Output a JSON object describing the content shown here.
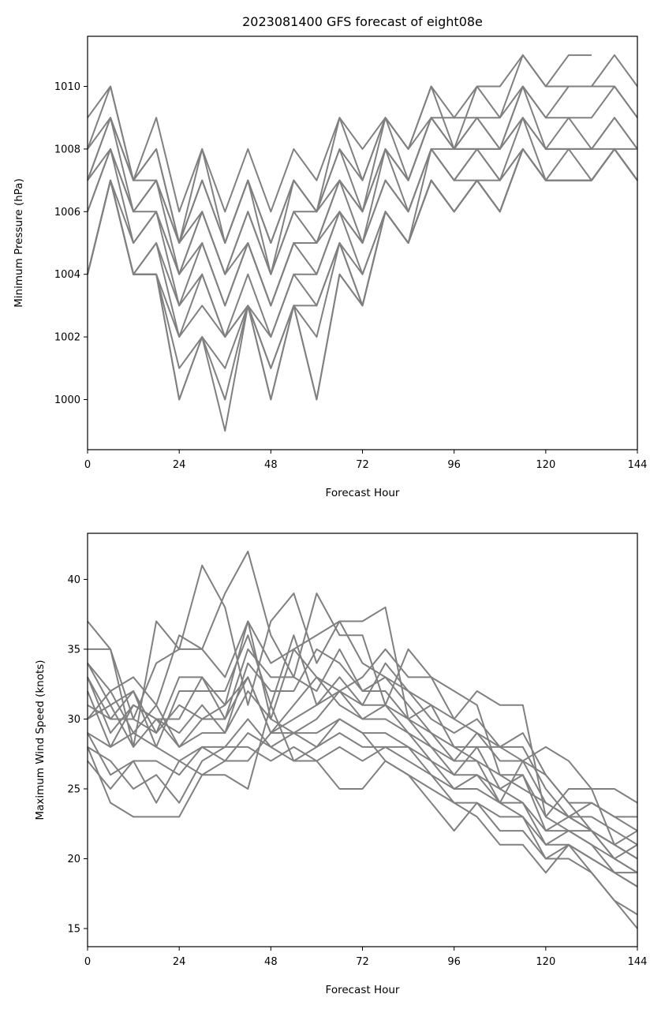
{
  "title": "2023081400 GFS forecast of eight08e",
  "line_color": "#808080",
  "chart_data": [
    {
      "type": "line",
      "title": "2023081400 GFS forecast of eight08e",
      "xlabel": "Forecast Hour",
      "ylabel": "Minimum Pressure (hPa)",
      "xlim": [
        0,
        144
      ],
      "ylim": [
        998.4,
        1011.6
      ],
      "xticks": [
        0,
        24,
        48,
        72,
        96,
        120,
        144
      ],
      "yticks": [
        1000,
        1002,
        1004,
        1006,
        1008,
        1010
      ],
      "x": [
        0,
        6,
        12,
        18,
        24,
        30,
        36,
        42,
        48,
        54,
        60,
        66,
        72,
        78,
        84,
        90,
        96,
        102,
        108,
        114,
        120,
        126,
        132,
        138,
        144
      ],
      "series": [
        {
          "values": [
            1009,
            1010,
            1007,
            1009,
            1006,
            1008,
            1006,
            1008,
            1006,
            1008,
            1007,
            1009,
            1008,
            1009,
            1008,
            1010,
            1009,
            1010,
            1010,
            1011,
            1010,
            1011,
            1011,
            null,
            null
          ]
        },
        {
          "values": [
            1008,
            1010,
            1007,
            1008,
            1005,
            1008,
            1005,
            1007,
            1005,
            1007,
            1006,
            1009,
            1007,
            1009,
            1008,
            1010,
            1008,
            1010,
            1009,
            1011,
            1010,
            1010,
            1010,
            1011,
            1010
          ]
        },
        {
          "values": [
            1008,
            1009,
            1007,
            1008,
            1005,
            1007,
            1005,
            1007,
            1005,
            1007,
            1006,
            1008,
            1007,
            1009,
            1008,
            1009,
            1009,
            1009,
            1009,
            1010,
            1009,
            1010,
            1010,
            1010,
            1009
          ]
        },
        {
          "values": [
            1007,
            1009,
            1007,
            1007,
            1005,
            1007,
            1005,
            1007,
            1004,
            1007,
            1006,
            1008,
            1006,
            1009,
            1007,
            1009,
            1008,
            1009,
            1008,
            1010,
            1009,
            1009,
            1009,
            1010,
            1009
          ]
        },
        {
          "values": [
            1007,
            1009,
            1006,
            1007,
            1005,
            1006,
            1004,
            1006,
            1004,
            1006,
            1006,
            1007,
            1006,
            1008,
            1007,
            1009,
            1008,
            1009,
            1008,
            1010,
            1008,
            1009,
            1008,
            1009,
            1008
          ]
        },
        {
          "values": [
            1007,
            1008,
            1006,
            1007,
            1004,
            1006,
            1004,
            1006,
            1004,
            1006,
            1005,
            1007,
            1006,
            1008,
            1007,
            1009,
            1008,
            1008,
            1008,
            1009,
            1008,
            1008,
            1008,
            1009,
            1008
          ]
        },
        {
          "values": [
            1006,
            1008,
            1006,
            1006,
            1004,
            1006,
            1004,
            1005,
            1003,
            1005,
            1005,
            1007,
            1005,
            1008,
            1006,
            1008,
            1008,
            1008,
            1008,
            1009,
            1008,
            1008,
            1008,
            1008,
            1008
          ]
        },
        {
          "values": [
            1006,
            1008,
            1005,
            1006,
            1004,
            1005,
            1003,
            1005,
            1003,
            1005,
            1005,
            1006,
            1005,
            1007,
            1006,
            1008,
            1007,
            1008,
            1007,
            1009,
            1007,
            1008,
            1007,
            1008,
            1007
          ]
        },
        {
          "values": [
            1004,
            1007,
            1005,
            1006,
            1003,
            1005,
            1003,
            1005,
            1003,
            1005,
            1004,
            1006,
            1005,
            1007,
            1006,
            1008,
            1007,
            1008,
            1007,
            1008,
            1007,
            1007,
            1007,
            1008,
            1007
          ]
        },
        {
          "values": [
            1004,
            1007,
            1004,
            1005,
            1003,
            1004,
            1002,
            1004,
            1002,
            1004,
            1004,
            1006,
            1004,
            1006,
            1005,
            1008,
            1007,
            1007,
            1007,
            1008,
            1007,
            1007,
            1007,
            1008,
            1007
          ]
        },
        {
          "values": [
            1004,
            1007,
            1004,
            1005,
            1002,
            1004,
            1002,
            1003,
            1002,
            1004,
            1003,
            1005,
            1004,
            1006,
            1005,
            1007,
            1006,
            1007,
            1006,
            1008,
            1007,
            1007,
            1007,
            1008,
            1007
          ]
        },
        {
          "values": [
            1004,
            1007,
            1004,
            1004,
            1002,
            1003,
            1002,
            1003,
            1001,
            1003,
            1003,
            1005,
            1003,
            1006,
            1005,
            1007,
            1006,
            1007,
            1006,
            1008,
            1007,
            1007,
            1007,
            1008,
            1007
          ]
        },
        {
          "values": [
            1004,
            1007,
            1004,
            1004,
            1001,
            1002,
            1001,
            1003,
            1001,
            1003,
            1002,
            1005,
            1003,
            1006,
            1005,
            1007,
            1006,
            1007,
            1006,
            1008,
            1007,
            1007,
            1007,
            1008,
            1007
          ]
        },
        {
          "values": [
            1004,
            1007,
            1004,
            1004,
            1000,
            1002,
            1000,
            1003,
            1000,
            1003,
            1000,
            1004,
            1003,
            1006,
            1005,
            1007,
            1006,
            1007,
            1006,
            1008,
            1007,
            1007,
            1007,
            1008,
            1007
          ]
        },
        {
          "values": [
            1004,
            1007,
            1004,
            1004,
            1000,
            1002,
            999,
            1003,
            1000,
            1003,
            1000,
            1004,
            1003,
            1006,
            1005,
            1007,
            1006,
            1007,
            1006,
            1008,
            1007,
            1007,
            1007,
            1008,
            1007
          ]
        }
      ]
    },
    {
      "type": "line",
      "title": "",
      "xlabel": "Forecast Hour",
      "ylabel": "Maximum Wind Speed (knots)",
      "xlim": [
        0,
        144
      ],
      "ylim": [
        13.7,
        43.3
      ],
      "xticks": [
        0,
        24,
        48,
        72,
        96,
        120,
        144
      ],
      "yticks": [
        15,
        20,
        25,
        30,
        35,
        40
      ],
      "x": [
        0,
        6,
        12,
        18,
        24,
        30,
        36,
        42,
        48,
        54,
        60,
        66,
        72,
        78,
        84,
        90,
        96,
        102,
        108,
        114,
        120,
        126,
        132,
        138,
        144
      ],
      "series": [
        {
          "values": [
            37,
            35,
            30,
            34,
            35,
            41,
            38,
            31,
            37,
            39,
            34,
            37,
            37,
            38,
            30,
            31,
            28,
            27,
            24,
            27,
            28,
            27,
            25,
            25,
            24
          ]
        },
        {
          "values": [
            35,
            35,
            28,
            37,
            35,
            35,
            39,
            42,
            36,
            33,
            39,
            36,
            36,
            31,
            35,
            33,
            32,
            31,
            26,
            25,
            24,
            23,
            24,
            23,
            23
          ]
        },
        {
          "values": [
            34,
            32,
            33,
            31,
            36,
            35,
            33,
            37,
            34,
            35,
            36,
            37,
            34,
            33,
            32,
            31,
            30,
            32,
            31,
            31,
            23,
            25,
            25,
            21,
            22
          ]
        },
        {
          "values": [
            34,
            31,
            32,
            29,
            33,
            33,
            31,
            37,
            30,
            35,
            33,
            32,
            33,
            35,
            33,
            33,
            30,
            29,
            28,
            29,
            26,
            24,
            24,
            23,
            22
          ]
        },
        {
          "values": [
            33,
            30,
            32,
            28,
            32,
            32,
            32,
            36,
            31,
            36,
            31,
            32,
            31,
            34,
            32,
            30,
            29,
            30,
            28,
            28,
            25,
            23,
            23,
            22,
            21
          ]
        },
        {
          "values": [
            33,
            29,
            31,
            30,
            30,
            33,
            30,
            35,
            33,
            33,
            32,
            35,
            32,
            33,
            31,
            29,
            28,
            28,
            28,
            27,
            26,
            24,
            22,
            20,
            21
          ]
        },
        {
          "values": [
            32,
            28,
            31,
            30,
            29,
            31,
            29,
            34,
            32,
            32,
            35,
            34,
            32,
            32,
            30,
            29,
            27,
            29,
            27,
            27,
            24,
            23,
            22,
            21,
            20
          ]
        },
        {
          "values": [
            31,
            30,
            30,
            29,
            31,
            30,
            31,
            33,
            29,
            31,
            33,
            31,
            30,
            31,
            30,
            28,
            27,
            27,
            26,
            26,
            23,
            22,
            22,
            21,
            20
          ]
        },
        {
          "values": [
            30,
            32,
            29,
            31,
            28,
            30,
            30,
            33,
            29,
            30,
            31,
            33,
            31,
            31,
            29,
            28,
            26,
            28,
            25,
            26,
            22,
            23,
            22,
            20,
            19
          ]
        },
        {
          "values": [
            30,
            31,
            28,
            30,
            28,
            29,
            29,
            32,
            30,
            29,
            30,
            32,
            30,
            30,
            29,
            27,
            26,
            26,
            25,
            24,
            22,
            22,
            21,
            20,
            19
          ]
        },
        {
          "values": [
            29,
            28,
            29,
            28,
            27,
            28,
            28,
            30,
            28,
            29,
            29,
            30,
            29,
            29,
            28,
            27,
            25,
            26,
            24,
            24,
            21,
            22,
            21,
            19,
            19
          ]
        },
        {
          "values": [
            29,
            26,
            27,
            27,
            26,
            28,
            27,
            29,
            28,
            27,
            28,
            29,
            28,
            28,
            28,
            26,
            25,
            25,
            24,
            23,
            21,
            21,
            20,
            19,
            18
          ]
        },
        {
          "values": [
            28,
            27,
            25,
            26,
            24,
            27,
            28,
            28,
            27,
            28,
            27,
            28,
            27,
            28,
            27,
            26,
            24,
            24,
            23,
            23,
            20,
            21,
            20,
            19,
            18
          ]
        },
        {
          "values": [
            28,
            24,
            23,
            23,
            23,
            26,
            26,
            25,
            31,
            27,
            27,
            25,
            25,
            27,
            26,
            24,
            22,
            24,
            22,
            22,
            20,
            20,
            19,
            17,
            16
          ]
        },
        {
          "values": [
            27,
            25,
            27,
            24,
            27,
            26,
            27,
            27,
            29,
            29,
            28,
            30,
            29,
            27,
            26,
            25,
            24,
            23,
            21,
            21,
            19,
            21,
            19,
            17,
            15
          ]
        }
      ]
    }
  ]
}
